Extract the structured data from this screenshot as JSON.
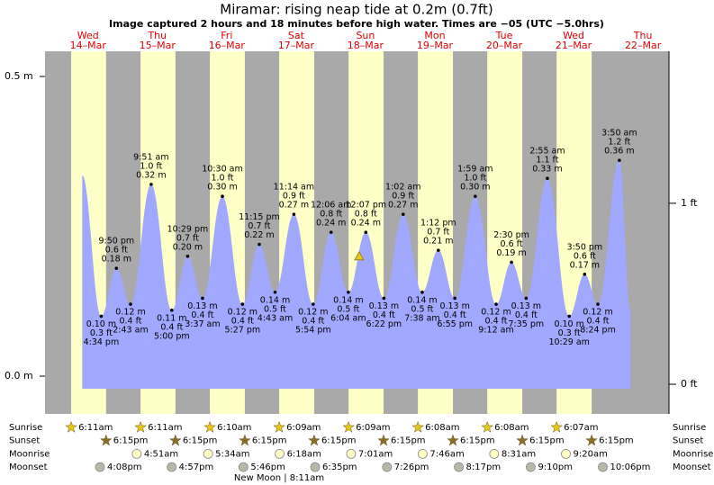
{
  "chart_data": {
    "type": "area",
    "title": "Miramar: rising  neap tide at 0.2m (0.7ft)",
    "subtitle": "Image captured 2 hours and 18 minutes before high water. Times are −05 (UTC −5.0hrs)",
    "days": [
      {
        "dow": "Wed",
        "date": "14–Mar"
      },
      {
        "dow": "Thu",
        "date": "15–Mar"
      },
      {
        "dow": "Fri",
        "date": "16–Mar"
      },
      {
        "dow": "Sat",
        "date": "17–Mar"
      },
      {
        "dow": "Sun",
        "date": "18–Mar"
      },
      {
        "dow": "Mon",
        "date": "19–Mar"
      },
      {
        "dow": "Tue",
        "date": "20–Mar"
      },
      {
        "dow": "Wed",
        "date": "21–Mar"
      },
      {
        "dow": "Thu",
        "date": "22–Mar"
      }
    ],
    "xlim": [
      -2.87,
      213
    ],
    "ylim": [
      -0.063,
      0.542
    ],
    "yticks": [
      {
        "value": 0.5,
        "label": "0.5 m"
      },
      {
        "value": 0,
        "label": "0.0 m"
      }
    ],
    "y2lim": [
      -0.164,
      1.84
    ],
    "y2ticks": [
      {
        "value": 1,
        "label": "1 ft"
      },
      {
        "value": 0,
        "label": "0 ft"
      }
    ],
    "color": "#a0a8ff",
    "day_color": "#ffffc8",
    "night_color": "#a9a9a9",
    "day_label_color": "#e00000",
    "x": [
      10,
      16.57,
      21.83,
      26.72,
      33.85,
      41.0,
      46.48,
      51.62,
      58.5,
      65.45,
      71.25,
      76.72,
      83.23,
      89.9,
      96.1,
      102.07,
      108.12,
      114.37,
      121.03,
      127.63,
      133.2,
      138.92,
      145.98,
      153.2,
      158.5,
      163.58,
      170.92,
      178.48,
      183.83,
      188.4,
      195.83,
      199.7
    ],
    "values": [
      0.335,
      0.1,
      0.18,
      0.12,
      0.32,
      0.11,
      0.2,
      0.13,
      0.3,
      0.12,
      0.22,
      0.14,
      0.27,
      0.12,
      0.24,
      0.14,
      0.24,
      0.13,
      0.27,
      0.14,
      0.21,
      0.13,
      0.3,
      0.12,
      0.19,
      0.13,
      0.33,
      0.1,
      0.17,
      0.12,
      0.36,
      0.11
    ],
    "value_labels": [
      null,
      "0.10 m",
      "0.18 m",
      "0.12 m",
      "0.32 m",
      "0.11 m",
      "0.20 m",
      "0.13 m",
      "0.30 m",
      "0.12 m",
      "0.22 m",
      "0.14 m",
      "0.27 m",
      "0.12 m",
      "0.24 m",
      "0.14 m",
      "0.24 m",
      "0.13 m",
      "0.27 m",
      "0.14 m",
      "0.21 m",
      "0.13 m",
      "0.30 m",
      "0.12 m",
      "0.19 m",
      "0.13 m",
      "0.33 m",
      "0.10 m",
      "0.17 m",
      "0.12 m",
      "0.36 m",
      null
    ],
    "ft_labels": [
      null,
      "0.3 ft",
      "0.6 ft",
      "0.4 ft",
      "1.0 ft",
      "0.4 ft",
      "0.7 ft",
      "0.4 ft",
      "1.0 ft",
      "0.4 ft",
      "0.7 ft",
      "0.5 ft",
      "0.9 ft",
      "0.4 ft",
      "0.8 ft",
      "0.5 ft",
      "0.8 ft",
      "0.4 ft",
      "0.9 ft",
      "0.5 ft",
      "0.7 ft",
      "0.4 ft",
      "1.0 ft",
      "0.4 ft",
      "0.6 ft",
      "0.4 ft",
      "1.1 ft",
      "0.3 ft",
      "0.6 ft",
      "0.4 ft",
      "1.2 ft",
      null
    ],
    "time_labels": [
      null,
      "4:34 pm",
      "9:50 pm",
      "2:43 am",
      "9:51 am",
      "5:00 pm",
      "10:29 pm",
      "3:37 am",
      "10:30 am",
      "5:27 pm",
      "11:15 pm",
      "4:43 am",
      "11:14 am",
      "5:54 pm",
      "12:06 am",
      "6:04 am",
      "12:07 pm",
      "6:22 pm",
      "1:02 am",
      "7:38 am",
      "1:12 pm",
      "6:55 pm",
      "1:59 am",
      "9:12 am",
      "2:30 pm",
      "7:35 pm",
      "2:55 am",
      "10:29 am",
      "3:50 pm",
      "8:24 pm",
      "3:50 am",
      null
    ],
    "now": {
      "x": 105.82,
      "value": 0.2
    },
    "events": [
      {
        "label": "Sunrise",
        "icon": "star",
        "color": "#e6c619",
        "times": [
          "6:11am",
          "6:11am",
          "6:10am",
          "6:09am",
          "6:09am",
          "6:08am",
          "6:08am",
          "6:07am"
        ]
      },
      {
        "label": "Sunset",
        "icon": "star",
        "color": "#8b6d2a",
        "times": [
          "6:15pm",
          "6:15pm",
          "6:15pm",
          "6:15pm",
          "6:15pm",
          "6:15pm",
          "6:15pm",
          "6:15pm"
        ]
      },
      {
        "label": "Moonrise",
        "icon": "circle",
        "color": "#ffffc8",
        "times": [
          null,
          "4:51am",
          "5:34am",
          "6:18am",
          "7:01am",
          "7:46am",
          "8:31am",
          "9:20am"
        ]
      },
      {
        "label": "Moonset",
        "icon": "circle",
        "color": "#b8b8a8",
        "times": [
          "4:08pm",
          "4:57pm",
          "5:46pm",
          "6:35pm",
          "7:26pm",
          "8:17pm",
          "9:10pm",
          "10:06pm"
        ]
      }
    ],
    "moon_phase": "New Moon | 8:11am"
  }
}
